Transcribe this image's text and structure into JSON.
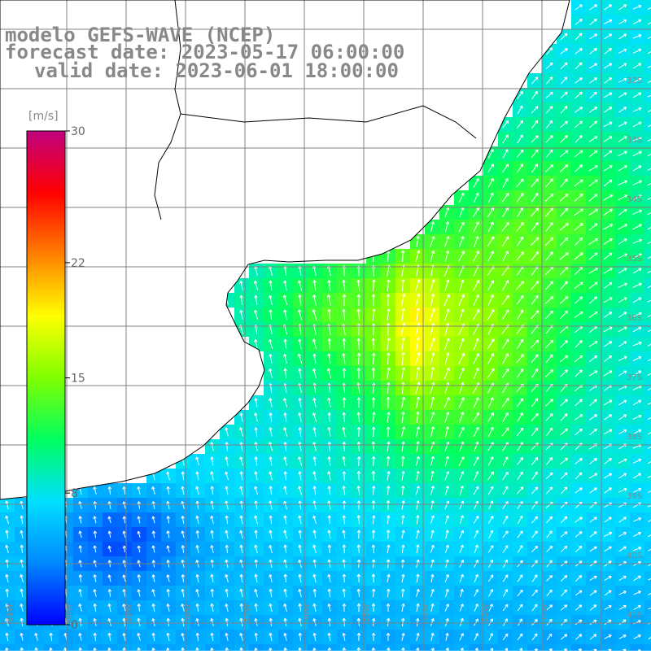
{
  "title_lines": [
    "modelo GEFS-WAVE (NCEP)",
    "forecast date: 2023-05-17 06:00:00",
    "valid date: 2023-06-01 18:00:00"
  ],
  "colorbar": {
    "unit": "[m/s]",
    "ticks": [
      "30",
      "22",
      "15",
      "8",
      "0"
    ],
    "tick_values": [
      30,
      22,
      15,
      8,
      0
    ],
    "min": 0,
    "max": 30,
    "colors": [
      "#0000ff",
      "#0088ff",
      "#00e0ff",
      "#00ff60",
      "#80ff00",
      "#ffff00",
      "#ff8000",
      "#ff0000",
      "#c00080"
    ]
  },
  "latitude_labels": [
    "32S",
    "33S",
    "34S",
    "35S",
    "36S",
    "37S",
    "38S",
    "39S",
    "40S",
    "41S"
  ],
  "longitude_labels": [
    "61W",
    "60W",
    "59W",
    "58W",
    "57W",
    "56W",
    "55W",
    "54W",
    "53W",
    "52W"
  ],
  "map": {
    "variable": "wind speed",
    "land_color": "#ffffff",
    "coast_color": "#000000",
    "grid_color": "#808080",
    "arrow_color": "#ffffff"
  }
}
